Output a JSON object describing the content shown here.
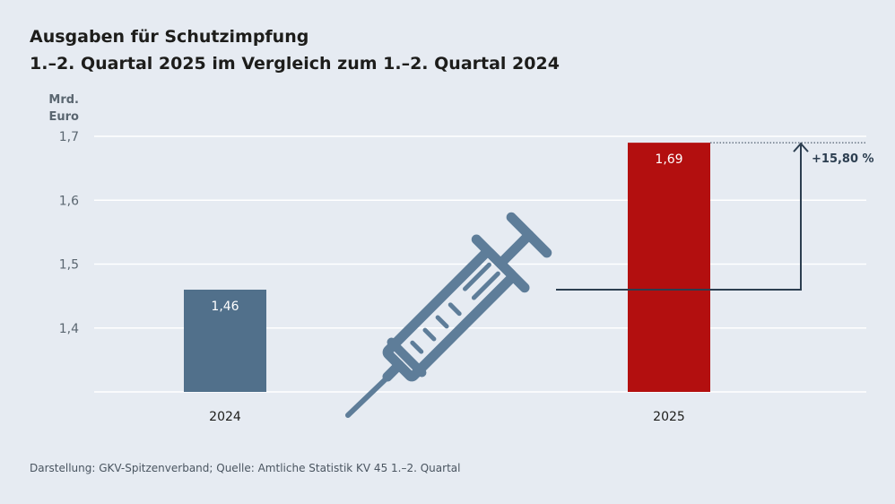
{
  "title": {
    "line1": "Ausgaben für Schutzimpfung",
    "line2": "1.–2. Quartal 2025 im Vergleich zum 1.–2. Quartal 2024"
  },
  "source": "Darstellung: GKV-Spitzenverband; Quelle: Amtliche Statistik KV 45 1.–2. Quartal",
  "colors": {
    "bar_2024": "#51708b",
    "bar_2025": "#b30f0f",
    "syringe": "#5e7d99",
    "arrow": "#2c3e50",
    "gridline": "#ffffff",
    "axis_text": "#5a6670"
  },
  "chart_data": {
    "type": "bar",
    "title": "Ausgaben für Schutzimpfung",
    "subtitle": "1.–2. Quartal 2025 im Vergleich zum 1.–2. Quartal 2024",
    "ylabel_line1": "Mrd.",
    "ylabel_line2": "Euro",
    "xlabel": "",
    "categories": [
      "2024",
      "2025"
    ],
    "values": [
      1.46,
      1.69
    ],
    "value_labels": [
      "1,46",
      "1,69"
    ],
    "ylim": [
      1.3,
      1.7
    ],
    "yticks": [
      1.4,
      1.5,
      1.6,
      1.7
    ],
    "ytick_labels": [
      "1,4",
      "1,5",
      "1,6",
      "1,7"
    ],
    "grid": true,
    "annotation": "+15,80 %"
  }
}
